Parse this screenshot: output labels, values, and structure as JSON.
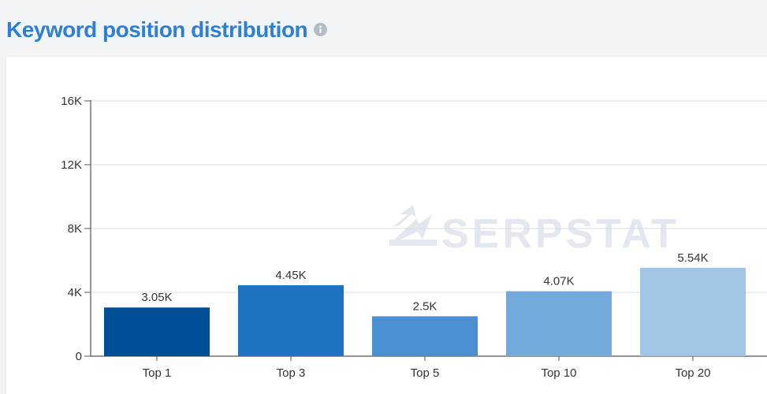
{
  "header": {
    "title": "Keyword position distribution",
    "info_icon": "info-icon"
  },
  "watermark": {
    "text": "SERPSTAT",
    "icon": "serpstat-logo-icon"
  },
  "colors": {
    "title": "#2d7fd1",
    "grid": "#d6dbe6",
    "bars": [
      "#004f96",
      "#1f72c1",
      "#4a8fd0",
      "#74a9db",
      "#a1c5e5"
    ]
  },
  "chart_data": {
    "type": "bar",
    "title": "",
    "xlabel": "",
    "ylabel": "",
    "categories": [
      "Top 1",
      "Top 3",
      "Top 5",
      "Top 10",
      "Top 20"
    ],
    "values": [
      3050,
      4450,
      2500,
      4070,
      5540
    ],
    "value_labels": [
      "3.05K",
      "4.45K",
      "2.5K",
      "4.07K",
      "5.54K"
    ],
    "ylim": [
      0,
      16000
    ],
    "yticks": [
      0,
      4000,
      8000,
      12000,
      16000
    ],
    "ytick_labels": [
      "0",
      "4K",
      "8K",
      "12K",
      "16K"
    ],
    "grid": true,
    "legend": "none"
  }
}
